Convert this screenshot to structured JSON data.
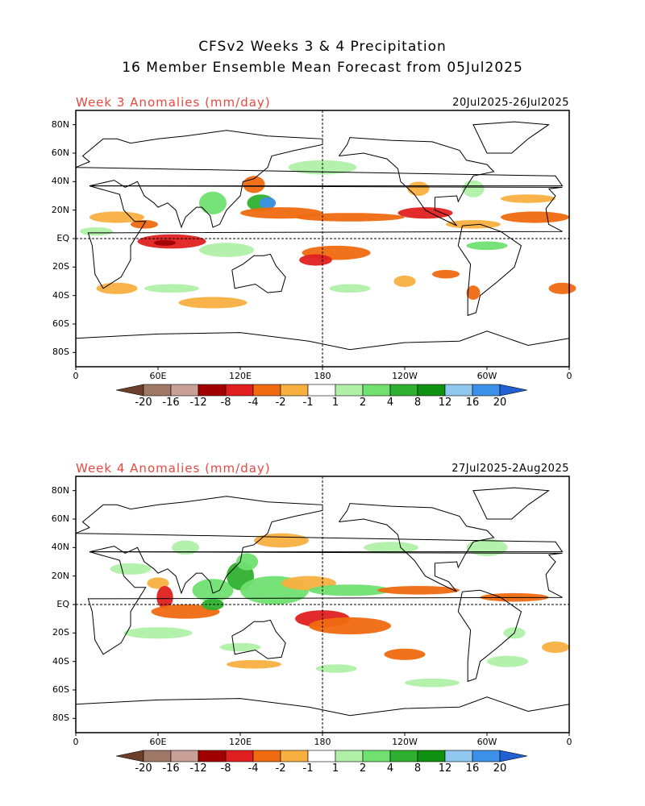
{
  "header": {
    "line1": "CFSv2 Weeks 3 & 4 Precipitation",
    "line2": "16 Member Ensemble Mean Forecast from 05Jul2025"
  },
  "panels": [
    {
      "title": "Week 3 Anomalies (mm/day)",
      "dates": "20Jul2025-26Jul2025"
    },
    {
      "title": "Week 4 Anomalies (mm/day)",
      "dates": "27Jul2025-2Aug2025"
    }
  ],
  "axes": {
    "lat_labels": [
      "80N",
      "60N",
      "40N",
      "20N",
      "EQ",
      "20S",
      "40S",
      "60S",
      "80S"
    ],
    "lat_values": [
      80,
      60,
      40,
      20,
      0,
      -20,
      -40,
      -60,
      -80
    ],
    "lon_labels": [
      "0",
      "60E",
      "120E",
      "180",
      "120W",
      "60W",
      "0"
    ],
    "lon_values": [
      0,
      60,
      120,
      180,
      240,
      300,
      360
    ],
    "lat_range": [
      -90,
      90
    ],
    "lon_range": [
      0,
      360
    ]
  },
  "colorbar": {
    "labels": [
      "-20",
      "-16",
      "-12",
      "-8",
      "-4",
      "-2",
      "-1",
      "1",
      "2",
      "4",
      "8",
      "12",
      "16",
      "20"
    ],
    "colors": [
      "#6b3f2a",
      "#a07868",
      "#c8a098",
      "#a00000",
      "#e02020",
      "#f06a10",
      "#f8b040",
      "#ffffff",
      "#b0f0a8",
      "#70e070",
      "#30b030",
      "#109010",
      "#90c8f0",
      "#3c90e8",
      "#2060d0"
    ]
  },
  "colors": {
    "title_red": "#e8483f",
    "dry": [
      "#f8b040",
      "#f06a10",
      "#e02020",
      "#a00000"
    ],
    "wet": [
      "#b0f0a8",
      "#70e070",
      "#30b030",
      "#3c90e8"
    ]
  }
}
